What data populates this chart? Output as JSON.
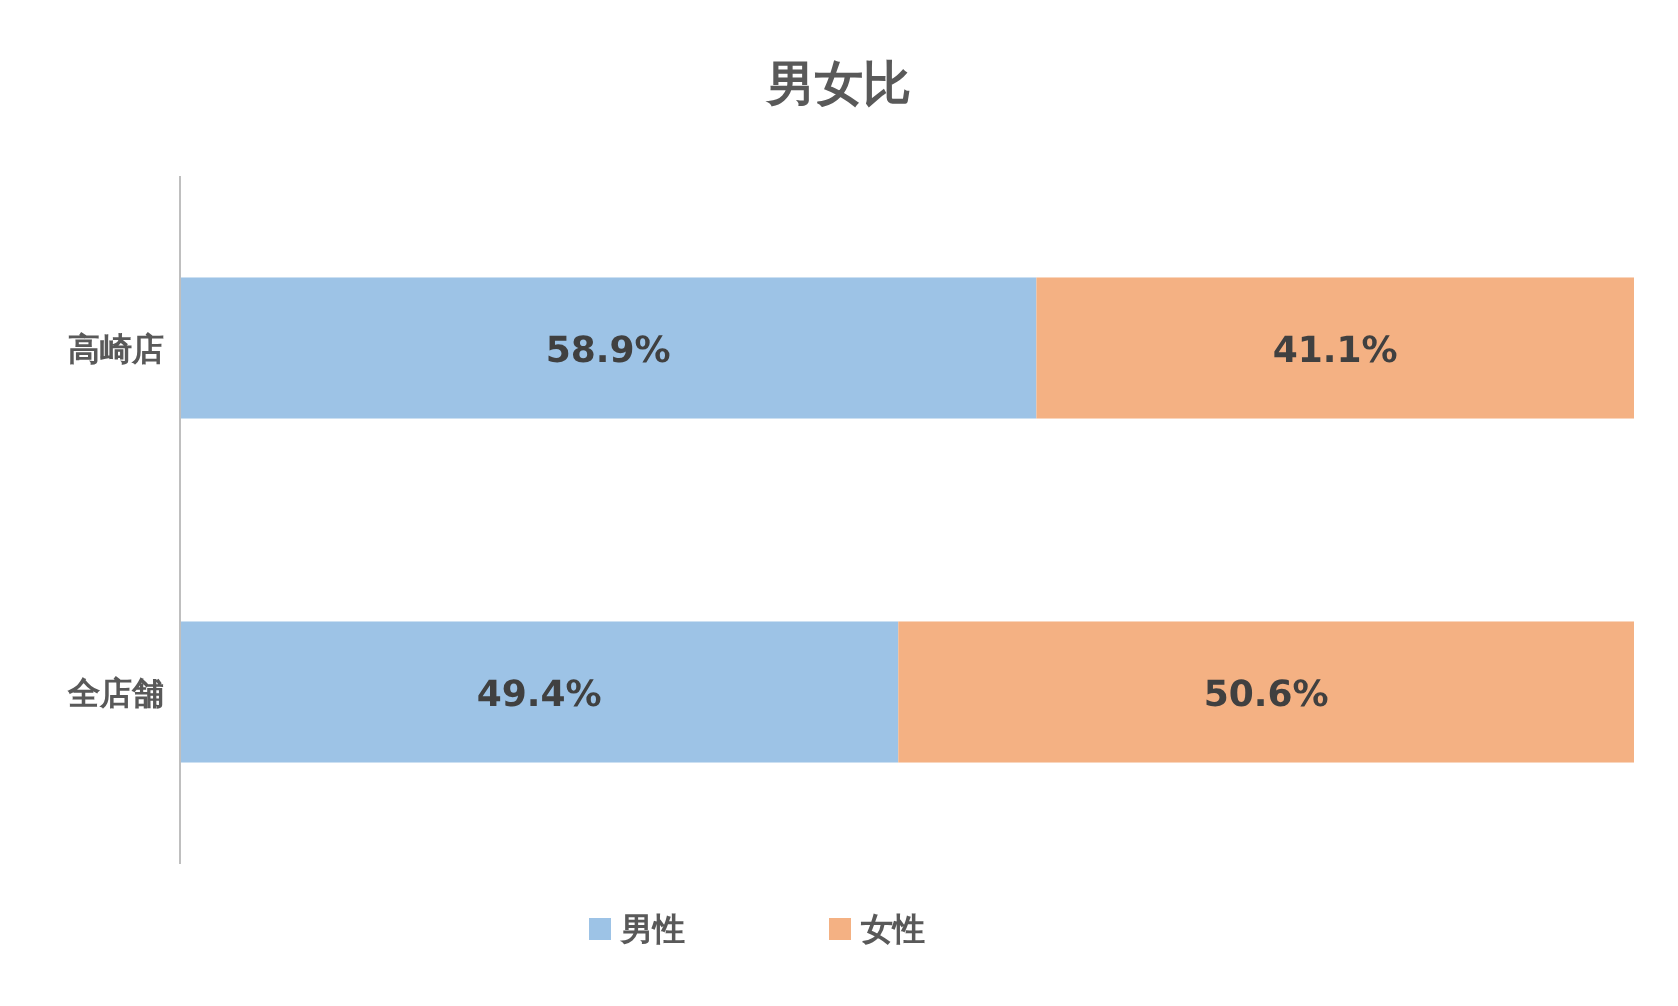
{
  "chart_data": {
    "type": "bar",
    "orientation": "horizontal",
    "stacked": true,
    "title": "男女比",
    "categories": [
      "高崎店",
      "全店舗"
    ],
    "xlim": [
      0,
      100
    ],
    "series": [
      {
        "name": "男性",
        "color": "#9dc3e6",
        "values": [
          58.9,
          49.4
        ],
        "value_labels": [
          "58.9%",
          "49.4%"
        ]
      },
      {
        "name": "女性",
        "color": "#f4b183",
        "values": [
          41.1,
          50.6
        ],
        "value_labels": [
          "41.1%",
          "50.6%"
        ]
      }
    ],
    "legend": "bottom"
  }
}
